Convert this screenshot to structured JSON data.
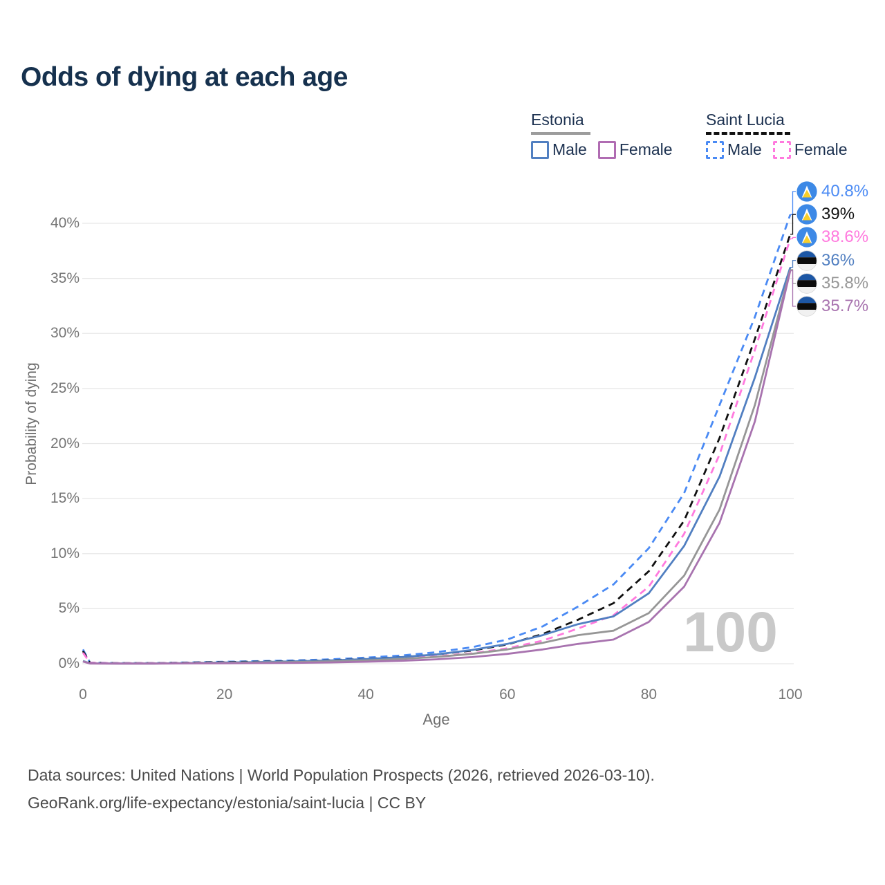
{
  "title": "Odds of dying at each age",
  "legend": {
    "groups": [
      {
        "name": "Estonia",
        "line_style": "solid",
        "line_color": "#9c9c9c",
        "items": [
          {
            "label": "Male",
            "color": "#517fc1"
          },
          {
            "label": "Female",
            "color": "#b06cb2"
          }
        ]
      },
      {
        "name": "Saint Lucia",
        "line_style": "dashed",
        "line_color": "#111111",
        "items": [
          {
            "label": "Male",
            "color": "#4a8af4"
          },
          {
            "label": "Female",
            "color": "#ff7ade"
          }
        ]
      }
    ]
  },
  "chart_data": {
    "type": "line",
    "title": "Odds of dying at each age",
    "xlabel": "Age",
    "ylabel": "Probability of dying",
    "xlim": [
      0,
      100
    ],
    "ylim": [
      0,
      43
    ],
    "xticks": [
      0,
      20,
      40,
      60,
      80,
      100
    ],
    "yticks": [
      0,
      5,
      10,
      15,
      20,
      25,
      30,
      35,
      40
    ],
    "ytick_suffix": "%",
    "grid": true,
    "legend_position": "top-right",
    "watermark": "100",
    "x": [
      0,
      1,
      5,
      10,
      15,
      20,
      25,
      30,
      35,
      40,
      45,
      50,
      55,
      60,
      65,
      70,
      75,
      80,
      85,
      90,
      95,
      100
    ],
    "series": [
      {
        "name": "Saint Lucia Male",
        "country": "Saint Lucia",
        "sex": "Male",
        "style": "dashed",
        "color": "#4a8af4",
        "flag": "saint-lucia",
        "end_label": "40.8%",
        "values": [
          1.3,
          0.1,
          0.06,
          0.06,
          0.12,
          0.18,
          0.24,
          0.3,
          0.4,
          0.55,
          0.75,
          1.05,
          1.5,
          2.2,
          3.4,
          5.2,
          7.2,
          10.5,
          15.5,
          23.5,
          31.5,
          40.8
        ]
      },
      {
        "name": "Saint Lucia Both sexes",
        "country": "Saint Lucia",
        "sex": "Both",
        "style": "dashed",
        "color": "#111111",
        "flag": "saint-lucia",
        "end_label": "39%",
        "values": [
          1.15,
          0.09,
          0.05,
          0.05,
          0.1,
          0.15,
          0.19,
          0.24,
          0.32,
          0.44,
          0.6,
          0.85,
          1.2,
          1.75,
          2.7,
          4.0,
          5.5,
          8.4,
          13.0,
          20.5,
          29.5,
          39.0
        ]
      },
      {
        "name": "Saint Lucia Female",
        "country": "Saint Lucia",
        "sex": "Female",
        "style": "dashed",
        "color": "#ff7ade",
        "flag": "saint-lucia",
        "end_label": "38.6%",
        "values": [
          1.0,
          0.08,
          0.05,
          0.05,
          0.08,
          0.11,
          0.14,
          0.18,
          0.25,
          0.34,
          0.47,
          0.66,
          0.95,
          1.4,
          2.1,
          3.2,
          4.4,
          7.0,
          11.8,
          19.0,
          28.5,
          38.6
        ]
      },
      {
        "name": "Estonia Male",
        "country": "Estonia",
        "sex": "Male",
        "style": "solid",
        "color": "#517fc1",
        "flag": "estonia",
        "end_label": "36%",
        "values": [
          0.25,
          0.03,
          0.02,
          0.02,
          0.06,
          0.11,
          0.16,
          0.22,
          0.3,
          0.42,
          0.6,
          0.85,
          1.25,
          1.8,
          2.6,
          3.6,
          4.3,
          6.4,
          10.7,
          17.0,
          26.0,
          36.0
        ]
      },
      {
        "name": "Estonia Both sexes",
        "country": "Estonia",
        "sex": "Both",
        "style": "solid",
        "color": "#969696",
        "flag": "estonia",
        "end_label": "35.8%",
        "values": [
          0.22,
          0.025,
          0.02,
          0.02,
          0.05,
          0.08,
          0.12,
          0.16,
          0.22,
          0.31,
          0.44,
          0.62,
          0.9,
          1.3,
          1.9,
          2.6,
          3.0,
          4.6,
          8.0,
          14.0,
          23.5,
          35.8
        ]
      },
      {
        "name": "Estonia Female",
        "country": "Estonia",
        "sex": "Female",
        "style": "solid",
        "color": "#a873af",
        "flag": "estonia",
        "end_label": "35.7%",
        "values": [
          0.2,
          0.02,
          0.015,
          0.015,
          0.03,
          0.04,
          0.06,
          0.08,
          0.12,
          0.18,
          0.27,
          0.4,
          0.6,
          0.9,
          1.3,
          1.8,
          2.2,
          3.8,
          7.0,
          12.8,
          22.0,
          35.7
        ]
      }
    ]
  },
  "footer": {
    "line1": "Data sources: United Nations | World Population Prospects (2026, retrieved 2026-03-10).",
    "line2": "GeoRank.org/life-expectancy/estonia/saint-lucia | CC BY"
  }
}
